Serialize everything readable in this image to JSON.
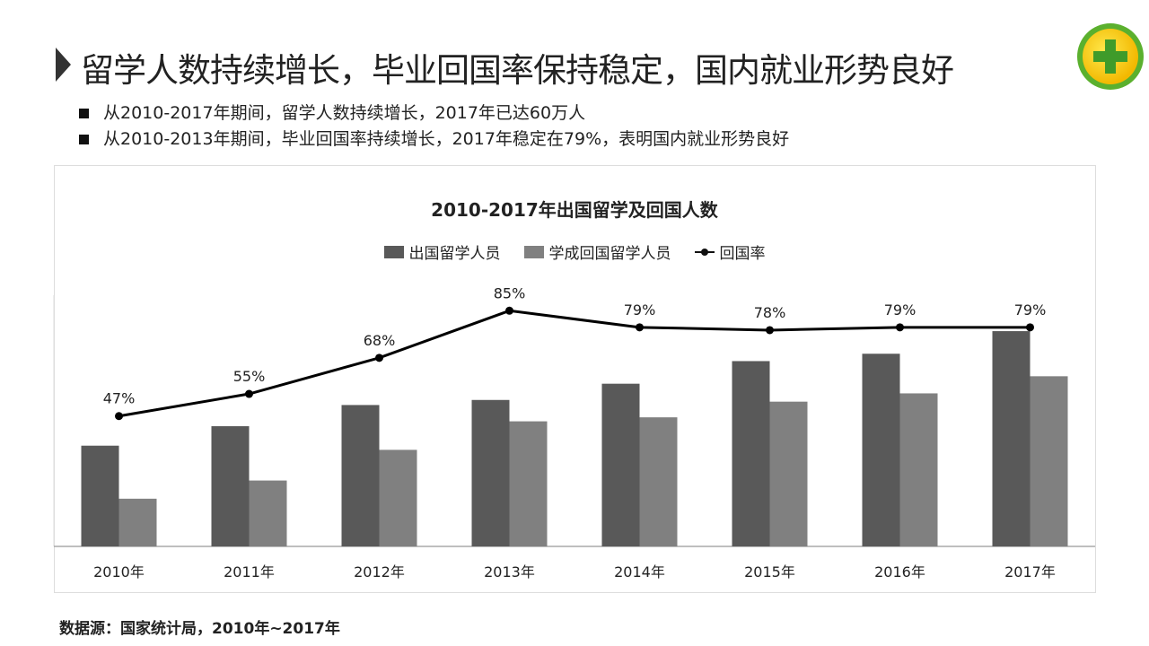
{
  "header": {
    "title": "留学人数持续增长，毕业回国率保持稳定，国内就业形势良好",
    "logo": "360-logo"
  },
  "bullets": [
    "从2010-2017年期间，留学人数持续增长，2017年已达60万人",
    "从2010-2013年期间，毕业回国率持续增长，2017年稳定在79%，表明国内就业形势良好"
  ],
  "source": "数据源：国家统计局，2010年~2017年",
  "chart_data": {
    "type": "bar",
    "title": "2010-2017年出国留学及回国人数",
    "categories": [
      "2010年",
      "2011年",
      "2012年",
      "2013年",
      "2014年",
      "2015年",
      "2016年",
      "2017年"
    ],
    "series": [
      {
        "name": "出国留学人员",
        "type": "bar",
        "color": "#595959",
        "values": [
          28.47,
          33.97,
          39.96,
          41.39,
          45.98,
          52.37,
          54.45,
          60.84
        ]
      },
      {
        "name": "学成回国留学人员",
        "type": "bar",
        "color": "#808080",
        "values": [
          13.48,
          18.62,
          27.29,
          35.35,
          36.48,
          40.91,
          43.25,
          48.09
        ]
      },
      {
        "name": "回国率",
        "type": "line",
        "color": "#000000",
        "values": [
          47,
          55,
          68,
          85,
          79,
          78,
          79,
          79
        ],
        "labels": [
          "47%",
          "55%",
          "68%",
          "85%",
          "79%",
          "78%",
          "79%",
          "79%"
        ]
      }
    ],
    "ylim": [
      0,
      71
    ],
    "y2lim": [
      0,
      90.6
    ],
    "legend": "top",
    "grid": false
  }
}
